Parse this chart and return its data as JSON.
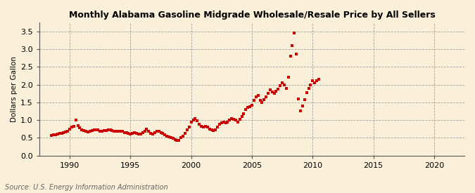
{
  "title": "Monthly Alabama Gasoline Midgrade Wholesale/Resale Price by All Sellers",
  "ylabel": "Dollars per Gallon",
  "source": "Source: U.S. Energy Information Administration",
  "background_color": "#faefd8",
  "line_color": "#cc0000",
  "marker": "s",
  "markersize": 2.8,
  "xlim": [
    1987.5,
    2022.5
  ],
  "ylim": [
    0.0,
    3.75
  ],
  "yticks": [
    0.0,
    0.5,
    1.0,
    1.5,
    2.0,
    2.5,
    3.0,
    3.5
  ],
  "xticks": [
    1990,
    1995,
    2000,
    2005,
    2010,
    2015,
    2020
  ],
  "data": {
    "dates": [
      1988.5,
      1988.67,
      1988.83,
      1989.0,
      1989.17,
      1989.33,
      1989.5,
      1989.67,
      1989.83,
      1990.0,
      1990.17,
      1990.33,
      1990.5,
      1990.67,
      1990.83,
      1991.0,
      1991.17,
      1991.33,
      1991.5,
      1991.67,
      1991.83,
      1992.0,
      1992.17,
      1992.33,
      1992.5,
      1992.67,
      1992.83,
      1993.0,
      1993.17,
      1993.33,
      1993.5,
      1993.67,
      1993.83,
      1994.0,
      1994.17,
      1994.33,
      1994.5,
      1994.67,
      1994.83,
      1995.0,
      1995.17,
      1995.33,
      1995.5,
      1995.67,
      1995.83,
      1996.0,
      1996.17,
      1996.33,
      1996.5,
      1996.67,
      1996.83,
      1997.0,
      1997.17,
      1997.33,
      1997.5,
      1997.67,
      1997.83,
      1998.0,
      1998.17,
      1998.33,
      1998.5,
      1998.67,
      1998.83,
      1999.0,
      1999.17,
      1999.33,
      1999.5,
      1999.67,
      1999.83,
      2000.0,
      2000.17,
      2000.33,
      2000.5,
      2000.67,
      2000.83,
      2001.0,
      2001.17,
      2001.33,
      2001.5,
      2001.67,
      2001.83,
      2002.0,
      2002.17,
      2002.33,
      2002.5,
      2002.67,
      2002.83,
      2003.0,
      2003.17,
      2003.33,
      2003.5,
      2003.67,
      2003.83,
      2004.0,
      2004.17,
      2004.33,
      2004.5,
      2004.67,
      2004.83,
      2005.0,
      2005.17,
      2005.33,
      2005.5,
      2005.67,
      2005.83,
      2006.0,
      2006.17,
      2006.33,
      2006.5,
      2006.67,
      2006.83,
      2007.0,
      2007.17,
      2007.33,
      2007.5,
      2007.67,
      2007.83,
      2008.0,
      2008.17,
      2008.33,
      2008.5,
      2008.67,
      2008.83,
      2009.0,
      2009.17,
      2009.33,
      2009.5,
      2009.67,
      2009.83,
      2010.0,
      2010.17,
      2010.33,
      2010.5
    ],
    "prices": [
      0.56,
      0.58,
      0.59,
      0.6,
      0.62,
      0.63,
      0.65,
      0.67,
      0.68,
      0.75,
      0.8,
      0.82,
      1.0,
      0.85,
      0.78,
      0.72,
      0.7,
      0.68,
      0.67,
      0.68,
      0.7,
      0.72,
      0.73,
      0.72,
      0.68,
      0.68,
      0.7,
      0.71,
      0.72,
      0.73,
      0.7,
      0.68,
      0.68,
      0.68,
      0.68,
      0.68,
      0.65,
      0.65,
      0.62,
      0.6,
      0.62,
      0.65,
      0.62,
      0.6,
      0.6,
      0.65,
      0.68,
      0.75,
      0.68,
      0.62,
      0.6,
      0.65,
      0.68,
      0.68,
      0.65,
      0.62,
      0.58,
      0.55,
      0.52,
      0.5,
      0.48,
      0.45,
      0.43,
      0.43,
      0.5,
      0.55,
      0.62,
      0.72,
      0.8,
      0.95,
      1.0,
      1.05,
      0.98,
      0.88,
      0.82,
      0.8,
      0.82,
      0.8,
      0.75,
      0.72,
      0.7,
      0.72,
      0.8,
      0.88,
      0.92,
      0.95,
      0.92,
      0.95,
      1.0,
      1.05,
      1.02,
      1.0,
      0.95,
      1.02,
      1.1,
      1.18,
      1.3,
      1.35,
      1.38,
      1.42,
      1.55,
      1.65,
      1.7,
      1.55,
      1.5,
      1.58,
      1.65,
      1.75,
      1.85,
      1.8,
      1.75,
      1.82,
      1.88,
      1.98,
      2.05,
      2.0,
      1.9,
      2.2,
      2.8,
      3.1,
      3.45,
      2.85,
      1.6,
      1.25,
      1.4,
      1.58,
      1.78,
      1.9,
      2.0,
      2.1,
      2.05,
      2.1,
      2.15
    ]
  }
}
